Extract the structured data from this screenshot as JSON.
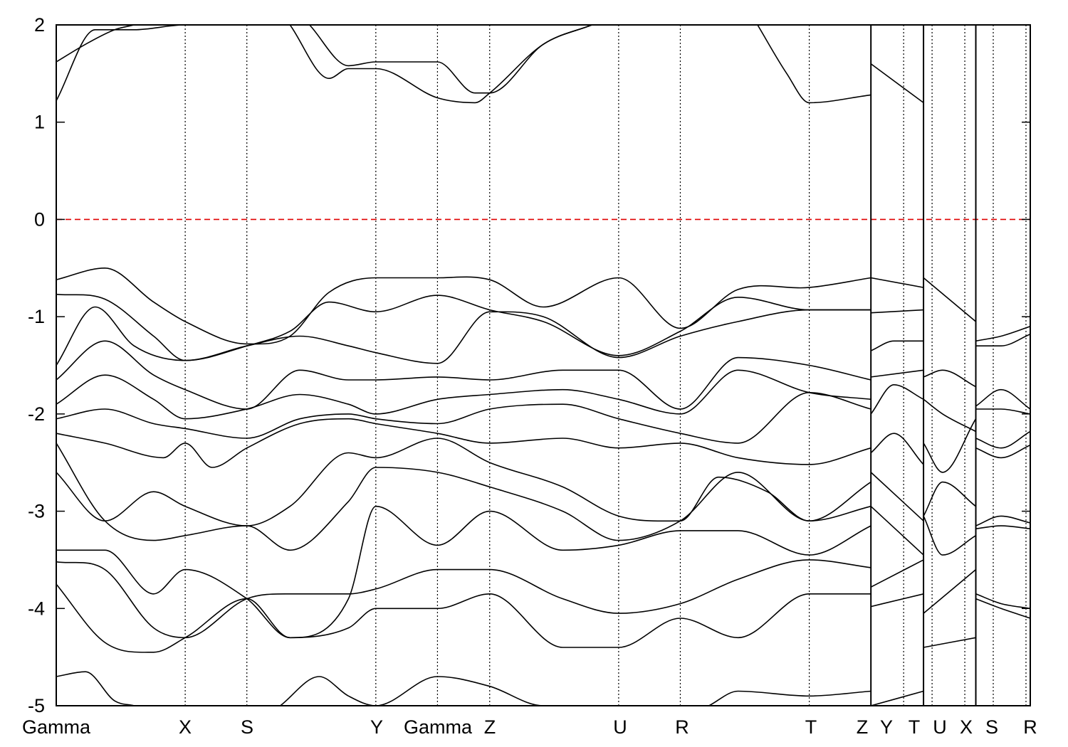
{
  "chart_data": {
    "type": "line",
    "title": "",
    "xlabel": "",
    "ylabel": "",
    "xlim": [
      0,
      1
    ],
    "ylim": [
      -5,
      2
    ],
    "grid": false,
    "y_ticks": [
      -5,
      -4,
      -3,
      -2,
      -1,
      0,
      1,
      2
    ],
    "fermi_level": 0,
    "colors": {
      "bands": "#000000",
      "fermi_level": "#e00000",
      "kpath_lines": "#000000"
    },
    "kpath": [
      {
        "label": "Gamma",
        "x": 0.0
      },
      {
        "label": "X",
        "x": 0.1324
      },
      {
        "label": "S",
        "x": 0.1957
      },
      {
        "label": "Y",
        "x": 0.3281
      },
      {
        "label": "Gamma",
        "x": 0.3914
      },
      {
        "label": "Z",
        "x": 0.445
      },
      {
        "label": "U",
        "x": 0.5774
      },
      {
        "label": "R",
        "x": 0.6407
      },
      {
        "label": "T",
        "x": 0.7731
      },
      {
        "label": "Z",
        "x": 0.8364
      },
      {
        "label": "Y",
        "x": 0.87
      },
      {
        "label": "T",
        "x": 0.8992
      },
      {
        "label": "U",
        "x": 0.9328
      },
      {
        "label": "X",
        "x": 0.962
      },
      {
        "label": "S",
        "x": 0.9956
      },
      {
        "label": "R",
        "x": 1.0
      }
    ],
    "visible_tick_labels": [
      "Gamma",
      "X",
      "S",
      "Y",
      "Gamma",
      "Z",
      "U",
      "R",
      "T",
      "Z",
      "Y",
      "T",
      "U",
      "X",
      "S",
      "R"
    ],
    "segment_breaks": [
      0.8364,
      0.8904,
      0.9441
    ],
    "series": [
      {
        "x": [
          0,
          0.05,
          0.1,
          0.1324,
          0.1957,
          0.24,
          0.28,
          0.3281,
          0.3914,
          0.445,
          0.5,
          0.5774,
          0.6407,
          0.7,
          0.7731,
          0.8364
        ],
        "y": [
          -0.62,
          -0.5,
          -0.85,
          -1.05,
          -1.28,
          -1.2,
          -0.75,
          -0.6,
          -0.6,
          -0.62,
          -0.9,
          -0.6,
          -1.12,
          -0.72,
          -0.7,
          -0.6
        ]
      },
      {
        "x": [
          0,
          0.05,
          0.1,
          0.1324,
          0.1957,
          0.24,
          0.28,
          0.3281,
          0.3914,
          0.445,
          0.5,
          0.5774,
          0.6407,
          0.7,
          0.7731,
          0.8364
        ],
        "y": [
          -0.77,
          -0.82,
          -1.2,
          -1.45,
          -1.3,
          -1.15,
          -0.85,
          -0.95,
          -0.78,
          -0.93,
          -1.05,
          -1.4,
          -1.15,
          -0.8,
          -0.93,
          -0.93
        ]
      },
      {
        "x": [
          0,
          0.04,
          0.08,
          0.1324,
          0.1957,
          0.25,
          0.3,
          0.3281,
          0.3914,
          0.445,
          0.5,
          0.5774,
          0.6407,
          0.7,
          0.7731,
          0.8364
        ],
        "y": [
          -1.5,
          -0.9,
          -1.3,
          -1.45,
          -1.3,
          -1.2,
          -1.3,
          -1.37,
          -1.48,
          -0.95,
          -1.0,
          -1.42,
          -1.2,
          -1.05,
          -0.93,
          -0.93
        ]
      },
      {
        "x": [
          0,
          0.05,
          0.1,
          0.1324,
          0.1957,
          0.25,
          0.3,
          0.3281,
          0.3914,
          0.445,
          0.52,
          0.5774,
          0.6407,
          0.7,
          0.7731,
          0.8364
        ],
        "y": [
          -1.65,
          -1.25,
          -1.6,
          -1.75,
          -1.95,
          -1.55,
          -1.65,
          -1.65,
          -1.62,
          -1.65,
          -1.55,
          -1.55,
          -1.95,
          -1.42,
          -1.5,
          -1.65
        ]
      },
      {
        "x": [
          0,
          0.05,
          0.1,
          0.1324,
          0.1957,
          0.25,
          0.3,
          0.3281,
          0.3914,
          0.445,
          0.52,
          0.5774,
          0.6407,
          0.7,
          0.7731,
          0.8364
        ],
        "y": [
          -1.9,
          -1.6,
          -1.85,
          -2.05,
          -1.95,
          -1.8,
          -1.9,
          -2.0,
          -1.85,
          -1.8,
          -1.75,
          -1.85,
          -2.0,
          -1.55,
          -1.78,
          -1.85
        ]
      },
      {
        "x": [
          0,
          0.05,
          0.1,
          0.1324,
          0.1957,
          0.25,
          0.3,
          0.3281,
          0.3914,
          0.445,
          0.52,
          0.5774,
          0.6407,
          0.7,
          0.7731,
          0.8364
        ],
        "y": [
          -2.05,
          -1.95,
          -2.1,
          -2.15,
          -2.25,
          -2.05,
          -2.0,
          -2.05,
          -2.1,
          -1.95,
          -1.9,
          -2.05,
          -2.2,
          -2.3,
          -1.78,
          -1.95
        ]
      },
      {
        "x": [
          0,
          0.05,
          0.11,
          0.1324,
          0.16,
          0.1957,
          0.25,
          0.3,
          0.3281,
          0.3914,
          0.445,
          0.52,
          0.5774,
          0.6407,
          0.7,
          0.7731,
          0.8364
        ],
        "y": [
          -2.2,
          -2.3,
          -2.45,
          -2.3,
          -2.55,
          -2.35,
          -2.1,
          -2.05,
          -2.1,
          -2.2,
          -2.3,
          -2.25,
          -2.35,
          -2.3,
          -2.45,
          -2.52,
          -2.35
        ]
      },
      {
        "x": [
          0,
          0.05,
          0.1,
          0.1324,
          0.1957,
          0.24,
          0.3,
          0.3281,
          0.3914,
          0.445,
          0.52,
          0.5774,
          0.6407,
          0.68,
          0.73,
          0.7731,
          0.8364
        ],
        "y": [
          -2.6,
          -3.1,
          -2.8,
          -2.95,
          -3.15,
          -2.95,
          -2.4,
          -2.45,
          -2.25,
          -2.5,
          -2.75,
          -3.05,
          -3.1,
          -2.65,
          -2.8,
          -3.1,
          -2.7
        ]
      },
      {
        "x": [
          0,
          0.05,
          0.1,
          0.1324,
          0.1957,
          0.24,
          0.3,
          0.3281,
          0.3914,
          0.445,
          0.52,
          0.5774,
          0.6407,
          0.7,
          0.7731,
          0.8364
        ],
        "y": [
          -2.3,
          -3.1,
          -3.3,
          -3.25,
          -3.15,
          -3.4,
          -2.9,
          -2.55,
          -2.6,
          -2.75,
          -3.0,
          -3.3,
          -3.1,
          -2.6,
          -3.1,
          -2.95
        ]
      },
      {
        "x": [
          0,
          0.05,
          0.1,
          0.1324,
          0.1957,
          0.24,
          0.3,
          0.3281,
          0.3914,
          0.445,
          0.52,
          0.5774,
          0.6407,
          0.7,
          0.7731,
          0.8364
        ],
        "y": [
          -3.4,
          -3.4,
          -3.85,
          -3.6,
          -3.9,
          -4.3,
          -3.9,
          -2.95,
          -3.35,
          -3.0,
          -3.4,
          -3.35,
          -3.2,
          -3.2,
          -3.45,
          -3.15
        ]
      },
      {
        "x": [
          0,
          0.05,
          0.1,
          0.1324,
          0.1957,
          0.24,
          0.3,
          0.3281,
          0.3914,
          0.445,
          0.52,
          0.5774,
          0.6407,
          0.7,
          0.7731,
          0.8364
        ],
        "y": [
          -3.52,
          -3.6,
          -4.2,
          -4.3,
          -3.9,
          -3.85,
          -3.85,
          -3.8,
          -3.6,
          -3.6,
          -3.9,
          -4.05,
          -3.95,
          -3.7,
          -3.5,
          -3.58
        ]
      },
      {
        "x": [
          0,
          0.05,
          0.1,
          0.1324,
          0.1957,
          0.24,
          0.3,
          0.3281,
          0.3914,
          0.445,
          0.52,
          0.5774,
          0.6407,
          0.7,
          0.7731,
          0.8364
        ],
        "y": [
          -3.75,
          -4.35,
          -4.45,
          -4.3,
          -3.9,
          -4.3,
          -4.2,
          -4.0,
          -4.0,
          -3.85,
          -4.4,
          -4.4,
          -4.1,
          -4.3,
          -3.85,
          -3.85
        ]
      },
      {
        "x": [
          0,
          0.03,
          0.06,
          0.08
        ],
        "y": [
          -4.7,
          -4.65,
          -4.95,
          -5.0
        ]
      },
      {
        "x": [
          0.23,
          0.27,
          0.3,
          0.3281,
          0.3914,
          0.445,
          0.5,
          0.55,
          0.5774
        ],
        "y": [
          -5.0,
          -4.7,
          -4.9,
          -5.0,
          -4.7,
          -4.8,
          -5.0,
          -5.0,
          -5.0
        ]
      },
      {
        "x": [
          0.67,
          0.7,
          0.7731,
          0.8364
        ],
        "y": [
          -5.0,
          -4.85,
          -4.9,
          -4.85
        ]
      },
      {
        "x": [
          0,
          0.04,
          0.08,
          0.1324,
          0.16,
          0.18
        ],
        "y": [
          1.22,
          1.95,
          1.95,
          2.0,
          2.0,
          2.0
        ]
      },
      {
        "x": [
          0,
          0.03,
          0.06,
          0.08
        ],
        "y": [
          1.62,
          1.8,
          1.95,
          2.0
        ]
      },
      {
        "x": [
          0.24,
          0.28,
          0.3,
          0.3281,
          0.3914,
          0.43,
          0.445,
          0.5,
          0.55
        ],
        "y": [
          2.0,
          1.45,
          1.55,
          1.55,
          1.25,
          1.2,
          1.3,
          1.8,
          2.0
        ]
      },
      {
        "x": [
          0.26,
          0.3,
          0.3281,
          0.3914,
          0.43,
          0.445,
          0.5,
          0.55
        ],
        "y": [
          2.0,
          1.58,
          1.62,
          1.62,
          1.3,
          1.3,
          1.8,
          2.0
        ]
      },
      {
        "x": [
          0.72,
          0.75,
          0.7731,
          0.8364
        ],
        "y": [
          2.0,
          1.5,
          1.2,
          1.28
        ]
      },
      {
        "x": [
          0.8364,
          0.8904
        ],
        "y": [
          1.6,
          1.2
        ]
      },
      {
        "x": [
          0.8364,
          0.8904
        ],
        "y": [
          -0.6,
          -0.7
        ]
      },
      {
        "x": [
          0.8364,
          0.8904
        ],
        "y": [
          -0.96,
          -0.93
        ]
      },
      {
        "x": [
          0.8364,
          0.86,
          0.8904
        ],
        "y": [
          -1.35,
          -1.25,
          -1.25
        ]
      },
      {
        "x": [
          0.8364,
          0.8904
        ],
        "y": [
          -1.62,
          -1.55
        ]
      },
      {
        "x": [
          0.8364,
          0.86,
          0.8904
        ],
        "y": [
          -2.0,
          -1.7,
          -1.85
        ]
      },
      {
        "x": [
          0.8364,
          0.86,
          0.8904
        ],
        "y": [
          -2.4,
          -2.2,
          -2.52
        ]
      },
      {
        "x": [
          0.8364,
          0.8904
        ],
        "y": [
          -2.6,
          -3.1
        ]
      },
      {
        "x": [
          0.8364,
          0.8904
        ],
        "y": [
          -2.95,
          -3.45
        ]
      },
      {
        "x": [
          0.8364,
          0.8904
        ],
        "y": [
          -3.78,
          -3.5
        ]
      },
      {
        "x": [
          0.8364,
          0.8904
        ],
        "y": [
          -3.98,
          -3.85
        ]
      },
      {
        "x": [
          0.8364,
          0.8904
        ],
        "y": [
          -5.0,
          -4.85
        ]
      },
      {
        "x": [
          0.8904,
          0.9441
        ],
        "y": [
          -0.6,
          -1.05
        ]
      },
      {
        "x": [
          0.8904,
          0.91,
          0.9441
        ],
        "y": [
          -1.62,
          -1.55,
          -1.72
        ]
      },
      {
        "x": [
          0.8904,
          0.91,
          0.9441
        ],
        "y": [
          -1.85,
          -2.0,
          -2.18
        ]
      },
      {
        "x": [
          0.8904,
          0.91,
          0.9441
        ],
        "y": [
          -2.3,
          -2.6,
          -2.05
        ]
      },
      {
        "x": [
          0.8904,
          0.91,
          0.9441
        ],
        "y": [
          -3.05,
          -2.7,
          -2.95
        ]
      },
      {
        "x": [
          0.8904,
          0.91,
          0.9441
        ],
        "y": [
          -3.05,
          -3.45,
          -3.25
        ]
      },
      {
        "x": [
          0.8904,
          0.9441
        ],
        "y": [
          -4.05,
          -3.6
        ]
      },
      {
        "x": [
          0.8904,
          0.9441
        ],
        "y": [
          -4.4,
          -4.3
        ]
      },
      {
        "x": [
          0.9441,
          0.97,
          1.0
        ],
        "y": [
          -1.25,
          -1.2,
          -1.1
        ]
      },
      {
        "x": [
          0.9441,
          0.97,
          1.0
        ],
        "y": [
          -1.3,
          -1.3,
          -1.18
        ]
      },
      {
        "x": [
          0.9441,
          0.97,
          1.0
        ],
        "y": [
          -1.92,
          -1.75,
          -1.95
        ]
      },
      {
        "x": [
          0.9441,
          0.97,
          1.0
        ],
        "y": [
          -1.95,
          -1.95,
          -2.0
        ]
      },
      {
        "x": [
          0.9441,
          0.97,
          1.0
        ],
        "y": [
          -2.25,
          -2.35,
          -2.18
        ]
      },
      {
        "x": [
          0.9441,
          0.97,
          1.0
        ],
        "y": [
          -2.35,
          -2.45,
          -2.32
        ]
      },
      {
        "x": [
          0.9441,
          0.97,
          1.0
        ],
        "y": [
          -3.15,
          -3.05,
          -3.12
        ]
      },
      {
        "x": [
          0.9441,
          0.97,
          1.0
        ],
        "y": [
          -3.18,
          -3.15,
          -3.18
        ]
      },
      {
        "x": [
          0.9441,
          0.97,
          1.0
        ],
        "y": [
          -3.85,
          -3.95,
          -4.0
        ]
      },
      {
        "x": [
          0.9441,
          0.97,
          1.0
        ],
        "y": [
          -3.9,
          -4.0,
          -4.1
        ]
      }
    ]
  }
}
